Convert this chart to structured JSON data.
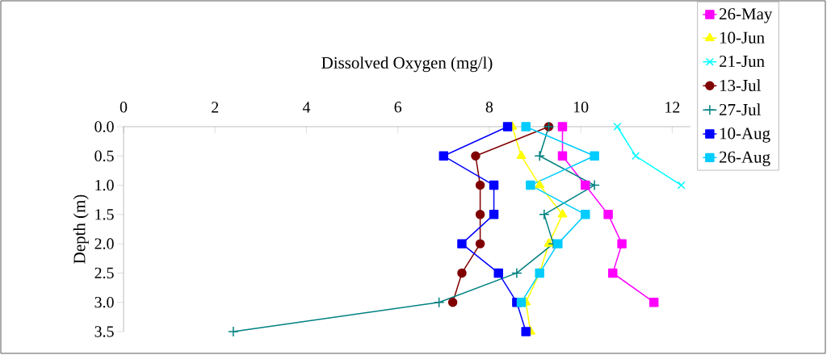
{
  "chart_data": {
    "type": "line",
    "orientation": "horizontal",
    "xlabel": "Dissolved Oxygen (mg/l)",
    "ylabel": "Depth (m)",
    "xlim": [
      0,
      12.4
    ],
    "xticks": [
      0,
      2,
      4,
      6,
      8,
      10,
      12
    ],
    "ylim": [
      3.5,
      0
    ],
    "yticks": [
      {
        "value": 0,
        "label": "0.0"
      },
      {
        "value": 0.5,
        "label": "0.5"
      },
      {
        "value": 1,
        "label": "1.0"
      },
      {
        "value": 1.5,
        "label": "1.5"
      },
      {
        "value": 2,
        "label": "2.0"
      },
      {
        "value": 2.5,
        "label": "2.5"
      },
      {
        "value": 3,
        "label": "3.0"
      },
      {
        "value": 3.5,
        "label": "3.5"
      }
    ],
    "grid": false,
    "legend": "right",
    "series": [
      {
        "name": "26-May",
        "color": "#ff00ff",
        "marker": "square",
        "x": [
          0,
          0.5,
          1,
          1.5,
          2,
          2.5,
          3
        ],
        "values": [
          9.6,
          9.6,
          10.1,
          10.6,
          10.9,
          10.7,
          11.6
        ]
      },
      {
        "name": "10-Jun",
        "color": "#ffff00",
        "marker": "triangle",
        "x": [
          0,
          0.5,
          1,
          1.5,
          2,
          2.5,
          3,
          3.5
        ],
        "values": [
          8.5,
          8.7,
          9.1,
          9.6,
          9.3,
          9.1,
          8.8,
          8.9
        ]
      },
      {
        "name": "21-Jun",
        "color": "#00ffff",
        "marker": "cross",
        "x": [
          0,
          0.5,
          1
        ],
        "values": [
          10.8,
          11.2,
          12.2
        ]
      },
      {
        "name": "13-Jul",
        "color": "#800000",
        "marker": "circle",
        "x": [
          0,
          0.5,
          1,
          1.5,
          2,
          2.5,
          3
        ],
        "values": [
          9.3,
          7.7,
          7.8,
          7.8,
          7.8,
          7.4,
          7.2
        ]
      },
      {
        "name": "27-Jul",
        "color": "#008080",
        "marker": "plus",
        "x": [
          0,
          0.5,
          1,
          1.5,
          2,
          2.5,
          3,
          3.5
        ],
        "values": [
          9.3,
          9.1,
          10.3,
          9.2,
          9.4,
          8.6,
          6.9,
          2.4
        ]
      },
      {
        "name": "10-Aug",
        "color": "#0000ff",
        "marker": "square",
        "x": [
          0,
          0.5,
          1,
          1.5,
          2,
          2.5,
          3,
          3.5
        ],
        "values": [
          8.4,
          7.0,
          8.1,
          8.1,
          7.4,
          8.2,
          8.6,
          8.8
        ]
      },
      {
        "name": "26-Aug",
        "color": "#00ccff",
        "marker": "square",
        "x": [
          0,
          0.5,
          1,
          1.5,
          2,
          2.5,
          3
        ],
        "values": [
          8.8,
          10.3,
          8.9,
          10.1,
          9.5,
          9.1,
          8.7
        ]
      }
    ]
  }
}
